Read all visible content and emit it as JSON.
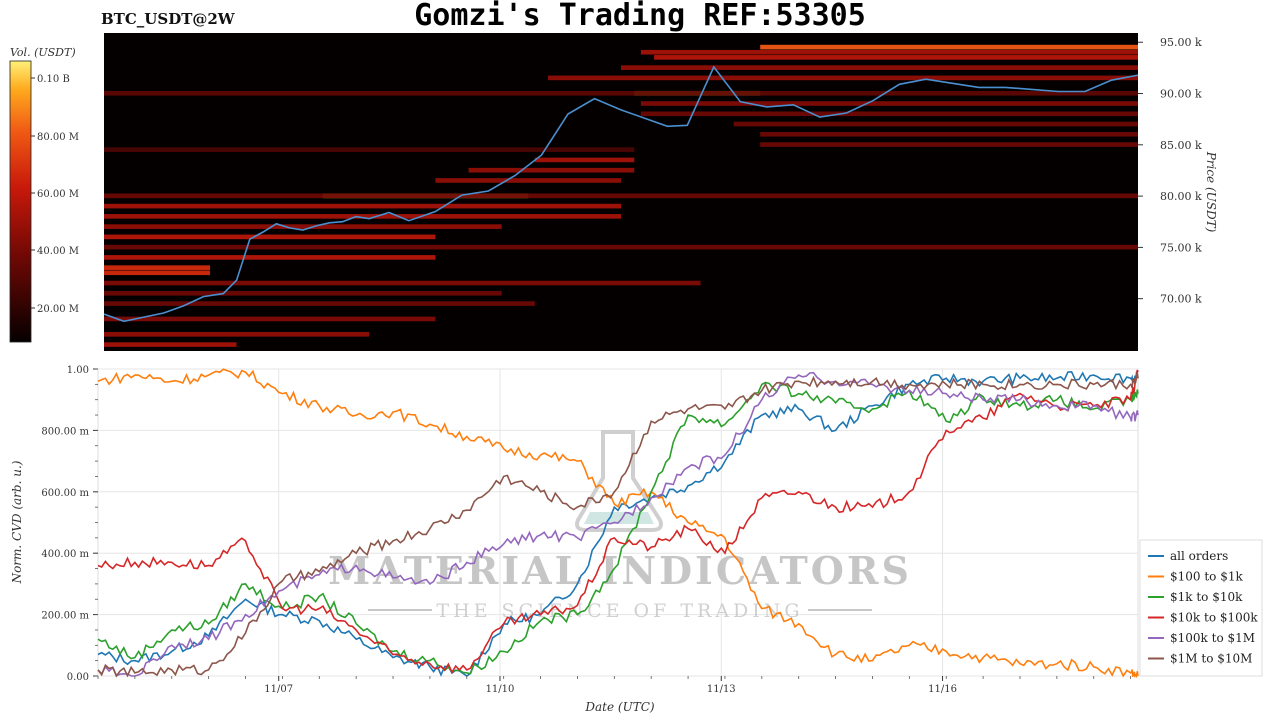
{
  "header": {
    "pair": "BTC_USDT@2W",
    "title": "Gomzi's Trading REF:53305"
  },
  "watermark": {
    "line1": "MATERIAL INDICATORS",
    "line2": "THE SCIENCE OF TRADING"
  },
  "colors": {
    "heatmap_bg": "#050000",
    "price_line": "#4a90d0",
    "all_orders": "#1f77b4",
    "s100_1k": "#ff7f0e",
    "s1k_10k": "#2ca02c",
    "s10k_100k": "#d62728",
    "s100k_1m": "#9467bd",
    "s1m_10m": "#8c564b"
  },
  "chart_data": [
    {
      "type": "heatmap",
      "title": "BTC_USDT@2W",
      "colorbar_label": "Vol. (USDT)",
      "colorbar_ticks": [
        "0.10 B",
        "80.00 M",
        "60.00 M",
        "40.00 M",
        "20.00 M"
      ],
      "ylabel": "Price (USDT)",
      "ytick_labels": [
        "95.00 k",
        "90.00 k",
        "85.00 k",
        "80.00 k",
        "75.00 k",
        "70.00 k"
      ],
      "yticks": [
        95000,
        90000,
        85000,
        80000,
        75000,
        70000
      ],
      "ylim": [
        64900,
        95900
      ],
      "xlim": [
        0,
        15.6
      ],
      "price_series": {
        "x": [
          0,
          0.3,
          0.6,
          0.9,
          1.2,
          1.5,
          1.8,
          2.0,
          2.2,
          2.4,
          2.6,
          2.8,
          3.0,
          3.2,
          3.4,
          3.6,
          3.8,
          4.0,
          4.3,
          4.6,
          5.0,
          5.4,
          5.8,
          6.2,
          6.6,
          7.0,
          7.4,
          7.8,
          8.2,
          8.5,
          8.8,
          9.2,
          9.6,
          10.0,
          10.4,
          10.8,
          11.2,
          11.6,
          12.0,
          12.4,
          12.8,
          13.2,
          13.6,
          14.0,
          14.4,
          14.8,
          15.2,
          15.6
        ],
        "y": [
          68500,
          67800,
          68200,
          68600,
          69300,
          70200,
          70500,
          71800,
          75800,
          76500,
          77300,
          76900,
          76700,
          77100,
          77400,
          77500,
          78000,
          77800,
          78400,
          77600,
          78500,
          80100,
          80500,
          82000,
          84000,
          88000,
          89500,
          88400,
          87500,
          86800,
          86900,
          92600,
          89200,
          88700,
          88900,
          87700,
          88100,
          89300,
          90900,
          91400,
          91000,
          90600,
          90600,
          90400,
          90200,
          90200,
          91300,
          91800
        ]
      },
      "heat_bands": [
        {
          "y": 94500,
          "x0": 9.9,
          "x1": 15.6,
          "level": 0.75
        },
        {
          "y": 94000,
          "x0": 8.1,
          "x1": 15.6,
          "level": 0.45
        },
        {
          "y": 93500,
          "x0": 8.3,
          "x1": 15.6,
          "level": 0.5
        },
        {
          "y": 92500,
          "x0": 7.8,
          "x1": 15.6,
          "level": 0.4
        },
        {
          "y": 91500,
          "x0": 6.7,
          "x1": 15.6,
          "level": 0.4
        },
        {
          "y": 90000,
          "x0": 8.0,
          "x1": 9.9,
          "level": 0.95
        },
        {
          "y": 90000,
          "x0": 0,
          "x1": 15.6,
          "level": 0.25
        },
        {
          "y": 89000,
          "x0": 8.1,
          "x1": 15.6,
          "level": 0.35
        },
        {
          "y": 88000,
          "x0": 8.1,
          "x1": 15.6,
          "level": 0.3
        },
        {
          "y": 87000,
          "x0": 9.5,
          "x1": 15.6,
          "level": 0.3
        },
        {
          "y": 86000,
          "x0": 9.9,
          "x1": 15.6,
          "level": 0.3
        },
        {
          "y": 85000,
          "x0": 9.9,
          "x1": 15.6,
          "level": 0.3
        },
        {
          "y": 84500,
          "x0": 0,
          "x1": 8.0,
          "level": 0.2
        },
        {
          "y": 83500,
          "x0": 6.5,
          "x1": 8.0,
          "level": 0.45
        },
        {
          "y": 82500,
          "x0": 5.5,
          "x1": 8.0,
          "level": 0.4
        },
        {
          "y": 81500,
          "x0": 5.0,
          "x1": 7.8,
          "level": 0.4
        },
        {
          "y": 80000,
          "x0": 3.3,
          "x1": 6.4,
          "level": 0.95
        },
        {
          "y": 80000,
          "x0": 0,
          "x1": 15.6,
          "level": 0.3
        },
        {
          "y": 79000,
          "x0": 0,
          "x1": 7.8,
          "level": 0.45
        },
        {
          "y": 78000,
          "x0": 0,
          "x1": 7.8,
          "level": 0.45
        },
        {
          "y": 77000,
          "x0": 0,
          "x1": 6.0,
          "level": 0.4
        },
        {
          "y": 76000,
          "x0": 0,
          "x1": 5.0,
          "level": 0.5
        },
        {
          "y": 75000,
          "x0": 0,
          "x1": 15.6,
          "level": 0.3
        },
        {
          "y": 74000,
          "x0": 0,
          "x1": 5.0,
          "level": 0.5
        },
        {
          "y": 73000,
          "x0": 0,
          "x1": 1.6,
          "level": 0.6
        },
        {
          "y": 72500,
          "x0": 0,
          "x1": 1.6,
          "level": 0.6
        },
        {
          "y": 71500,
          "x0": 0,
          "x1": 9.0,
          "level": 0.35
        },
        {
          "y": 70500,
          "x0": 0,
          "x1": 6.0,
          "level": 0.3
        },
        {
          "y": 69500,
          "x0": 0,
          "x1": 6.5,
          "level": 0.3
        },
        {
          "y": 68000,
          "x0": 0,
          "x1": 5.0,
          "level": 0.35
        },
        {
          "y": 66500,
          "x0": 0,
          "x1": 4.0,
          "level": 0.4
        },
        {
          "y": 65500,
          "x0": 0,
          "x1": 2.0,
          "level": 0.45
        }
      ]
    },
    {
      "type": "line",
      "xlabel": "Date (UTC)",
      "ylabel": "Norm. CVD (arb. u.)",
      "ytick_labels": [
        "1.00",
        "800.00 m",
        "600.00 m",
        "400.00 m",
        "200.00 m",
        "0.00"
      ],
      "yticks": [
        1.0,
        0.8,
        0.6,
        0.4,
        0.2,
        0.0
      ],
      "ylim": [
        0,
        1.0
      ],
      "x_tick_labels": [
        "11/07",
        "11/10",
        "11/13",
        "11/16"
      ],
      "xticks": [
        2.45,
        5.45,
        8.45,
        11.45
      ],
      "xlim": [
        0,
        14.1
      ],
      "legend_position": "right",
      "x": [
        0,
        0.5,
        1.0,
        1.5,
        2.0,
        2.5,
        3.0,
        3.5,
        4.0,
        4.5,
        5.0,
        5.5,
        6.0,
        6.5,
        7.0,
        7.5,
        8.0,
        8.5,
        9.0,
        9.5,
        10.0,
        10.5,
        11.0,
        11.5,
        12.0,
        12.5,
        13.0,
        13.5,
        14.0,
        14.1
      ],
      "series": [
        {
          "name": "all orders",
          "values": [
            0.07,
            0.05,
            0.08,
            0.13,
            0.25,
            0.2,
            0.18,
            0.12,
            0.06,
            0.03,
            0.0,
            0.17,
            0.2,
            0.3,
            0.55,
            0.58,
            0.62,
            0.7,
            0.85,
            0.87,
            0.8,
            0.88,
            0.95,
            0.97,
            0.96,
            0.97,
            0.97,
            0.98,
            0.97,
            0.97
          ]
        },
        {
          "name": "$100 to $1k",
          "values": [
            0.96,
            0.98,
            0.96,
            0.98,
            0.99,
            0.92,
            0.88,
            0.85,
            0.86,
            0.82,
            0.78,
            0.74,
            0.72,
            0.7,
            0.56,
            0.6,
            0.5,
            0.45,
            0.22,
            0.17,
            0.07,
            0.05,
            0.1,
            0.08,
            0.06,
            0.04,
            0.04,
            0.03,
            0.01,
            0.0
          ]
        },
        {
          "name": "$1k to $10k",
          "values": [
            0.12,
            0.06,
            0.15,
            0.17,
            0.3,
            0.22,
            0.26,
            0.17,
            0.08,
            0.05,
            0.01,
            0.08,
            0.18,
            0.2,
            0.35,
            0.6,
            0.85,
            0.82,
            0.95,
            0.92,
            0.89,
            0.87,
            0.93,
            0.83,
            0.91,
            0.88,
            0.9,
            0.87,
            0.9,
            0.92
          ]
        },
        {
          "name": "$10k to $100k",
          "values": [
            0.36,
            0.37,
            0.37,
            0.36,
            0.44,
            0.22,
            0.22,
            0.15,
            0.07,
            0.04,
            0.02,
            0.17,
            0.2,
            0.23,
            0.45,
            0.42,
            0.48,
            0.4,
            0.58,
            0.6,
            0.55,
            0.55,
            0.6,
            0.8,
            0.84,
            0.92,
            0.88,
            0.88,
            0.9,
            0.99
          ]
        },
        {
          "name": "$100k to $1M",
          "values": [
            0.02,
            0.0,
            0.1,
            0.12,
            0.2,
            0.28,
            0.33,
            0.36,
            0.32,
            0.3,
            0.37,
            0.43,
            0.46,
            0.45,
            0.5,
            0.58,
            0.68,
            0.72,
            0.9,
            0.98,
            0.96,
            0.95,
            0.93,
            0.92,
            0.9,
            0.9,
            0.88,
            0.88,
            0.84,
            0.85
          ]
        },
        {
          "name": "$1M to $10M",
          "values": [
            0.02,
            0.01,
            0.02,
            0.02,
            0.14,
            0.31,
            0.34,
            0.4,
            0.44,
            0.48,
            0.54,
            0.65,
            0.6,
            0.55,
            0.6,
            0.83,
            0.87,
            0.87,
            0.93,
            0.96,
            0.96,
            0.96,
            0.95,
            0.95,
            0.95,
            0.95,
            0.95,
            0.95,
            0.95,
            0.97
          ]
        }
      ]
    }
  ]
}
